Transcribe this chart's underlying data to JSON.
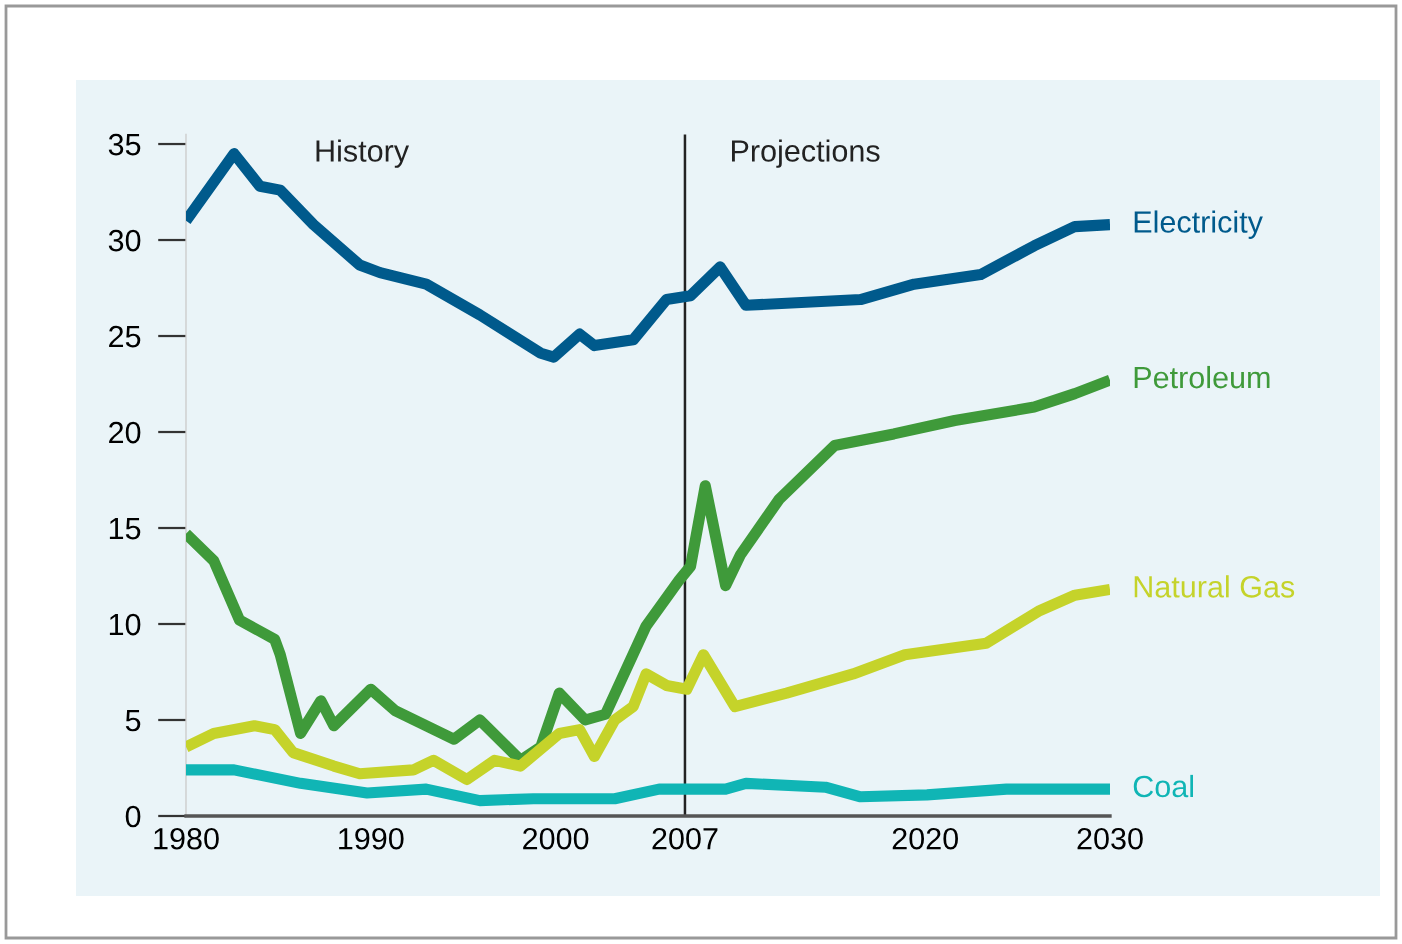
{
  "chart_data": {
    "type": "line",
    "annotations": [
      "History",
      "Projections"
    ],
    "xlim": [
      1980,
      2030
    ],
    "xticks": [
      1980,
      1990,
      2000,
      2007,
      2020,
      2030
    ],
    "ylim": [
      0,
      35.5
    ],
    "yticks": [
      0,
      5,
      10,
      15,
      20,
      25,
      30,
      35
    ],
    "grid": false,
    "legend": false,
    "marker": "none",
    "line_style": "solid",
    "ref_lines": [
      {
        "axis": "x",
        "value": 2007,
        "color": "#222222"
      }
    ],
    "series": [
      {
        "name": "Electricity",
        "color": "#005a8c",
        "x": [
          1980,
          1982.6,
          1984,
          1985.1,
          1986.9,
          1989.4,
          1990.5,
          1993,
          1995.9,
          1999.2,
          1999.9,
          2001.3,
          2002.1,
          2004.2,
          2006,
          2007.3,
          2008.9,
          2010.3,
          2016.5,
          2019.4,
          2023,
          2025.9,
          2028.1,
          2030
        ],
        "values": [
          31.0,
          34.5,
          32.8,
          32.6,
          30.8,
          28.7,
          28.3,
          27.7,
          26.1,
          24.1,
          23.9,
          25.1,
          24.5,
          24.8,
          26.9,
          27.1,
          28.6,
          26.6,
          26.9,
          27.7,
          28.2,
          29.7,
          30.7,
          30.8
        ]
      },
      {
        "name": "Petroleum",
        "color": "#3f9a3a",
        "x": [
          1980,
          1981.5,
          1982.9,
          1984.8,
          1985.1,
          1986.2,
          1987.3,
          1988,
          1990,
          1991.3,
          1994.5,
          1995.9,
          1998.1,
          1999.2,
          2000.2,
          2001.6,
          2002.7,
          2004.9,
          2006.7,
          2007.3,
          2008.1,
          2009.2,
          2010,
          2012.1,
          2015.1,
          2018.3,
          2021.6,
          2025.9,
          2028.1,
          2030
        ],
        "values": [
          14.7,
          13.3,
          10.2,
          9.2,
          8.4,
          4.3,
          6.0,
          4.7,
          6.6,
          5.5,
          4.0,
          5.0,
          2.9,
          3.6,
          6.4,
          5.0,
          5.3,
          9.9,
          12.3,
          13.0,
          17.2,
          12.0,
          13.6,
          16.5,
          19.3,
          19.9,
          20.6,
          21.3,
          22.0,
          22.7
        ]
      },
      {
        "name": "Natural Gas",
        "color": "#c5d32a",
        "x": [
          1980,
          1981.5,
          1983.7,
          1984.8,
          1985.8,
          1988,
          1989.4,
          1992.3,
          1993.4,
          1995.2,
          1996.7,
          1998.1,
          2000.2,
          2001.3,
          2002.1,
          2003.2,
          2004.2,
          2004.9,
          2006,
          2007.1,
          2008,
          2009.7,
          2012.5,
          2016.1,
          2018.9,
          2023.3,
          2026.2,
          2028.1,
          2030
        ],
        "values": [
          3.6,
          4.3,
          4.7,
          4.5,
          3.3,
          2.6,
          2.2,
          2.4,
          2.9,
          1.9,
          2.9,
          2.6,
          4.3,
          4.5,
          3.1,
          5.0,
          5.7,
          7.4,
          6.8,
          6.6,
          8.4,
          5.7,
          6.4,
          7.4,
          8.4,
          9.0,
          10.7,
          11.5,
          11.8
        ]
      },
      {
        "name": "Coal",
        "color": "#10b5b5",
        "x": [
          1980,
          1982.6,
          1986.2,
          1989.8,
          1993,
          1995.9,
          1998.8,
          2003.2,
          2005.6,
          2009.2,
          2010.3,
          2014.6,
          2016.5,
          2020.1,
          2024.4,
          2030
        ],
        "values": [
          2.4,
          2.4,
          1.7,
          1.2,
          1.4,
          0.8,
          0.9,
          0.9,
          1.4,
          1.4,
          1.7,
          1.5,
          1.0,
          1.1,
          1.4,
          1.4
        ]
      }
    ]
  }
}
